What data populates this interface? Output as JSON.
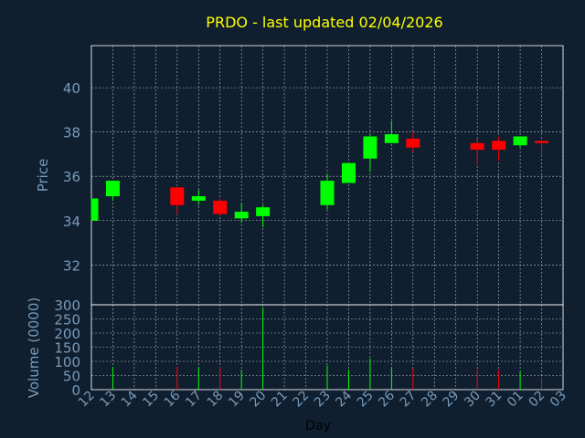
{
  "chart_data": {
    "title": "PRDO - last updated 02/04/2026",
    "xlabel": "Day",
    "ylabel": "Price",
    "volume_label": "Volume (0000)",
    "x_ticks": [
      "12",
      "13",
      "14",
      "15",
      "16",
      "17",
      "18",
      "19",
      "20",
      "21",
      "22",
      "23",
      "24",
      "25",
      "26",
      "27",
      "28",
      "29",
      "30",
      "31",
      "01",
      "02",
      "03"
    ],
    "price_ticks": [
      32,
      34,
      36,
      38,
      40
    ],
    "price_ylim": [
      30.2,
      41.9
    ],
    "volume_ticks": [
      0,
      50,
      100,
      150,
      200,
      250,
      300
    ],
    "volume_ylim": [
      0,
      300
    ],
    "grid": true,
    "colors": {
      "up": "#00ff00",
      "down": "#ff0000",
      "background": "#0f1f30",
      "grid": "#ffffff",
      "title": "#ffff00",
      "axis_text": "#7a9ab8"
    },
    "candles": [
      {
        "day": "12",
        "open": 34.0,
        "high": 35.0,
        "low": 34.0,
        "close": 35.0
      },
      {
        "day": "13",
        "open": 35.1,
        "high": 35.8,
        "low": 34.9,
        "close": 35.8
      },
      {
        "day": "16",
        "open": 35.5,
        "high": 35.5,
        "low": 34.3,
        "close": 34.7
      },
      {
        "day": "17",
        "open": 34.9,
        "high": 35.4,
        "low": 34.7,
        "close": 35.1
      },
      {
        "day": "18",
        "open": 34.9,
        "high": 35.0,
        "low": 34.2,
        "close": 34.3
      },
      {
        "day": "19",
        "open": 34.1,
        "high": 34.8,
        "low": 33.9,
        "close": 34.4
      },
      {
        "day": "20",
        "open": 34.2,
        "high": 34.7,
        "low": 33.7,
        "close": 34.6
      },
      {
        "day": "23",
        "open": 34.7,
        "high": 36.1,
        "low": 34.5,
        "close": 35.8
      },
      {
        "day": "24",
        "open": 35.7,
        "high": 36.6,
        "low": 35.7,
        "close": 36.6
      },
      {
        "day": "25",
        "open": 36.8,
        "high": 37.9,
        "low": 36.2,
        "close": 37.8
      },
      {
        "day": "26",
        "open": 37.5,
        "high": 38.5,
        "low": 37.5,
        "close": 37.9
      },
      {
        "day": "27",
        "open": 37.7,
        "high": 38.0,
        "low": 37.1,
        "close": 37.3
      },
      {
        "day": "30",
        "open": 37.5,
        "high": 37.7,
        "low": 36.5,
        "close": 37.2
      },
      {
        "day": "31",
        "open": 37.6,
        "high": 37.8,
        "low": 36.7,
        "close": 37.2
      },
      {
        "day": "01",
        "open": 37.4,
        "high": 37.8,
        "low": 37.3,
        "close": 37.8
      },
      {
        "day": "02",
        "open": 37.6,
        "high": 37.6,
        "low": 36.9,
        "close": 37.5
      }
    ],
    "volume": [
      {
        "day": "13",
        "value": 80,
        "dir": "up"
      },
      {
        "day": "16",
        "value": 80,
        "dir": "down"
      },
      {
        "day": "17",
        "value": 80,
        "dir": "up"
      },
      {
        "day": "18",
        "value": 80,
        "dir": "down"
      },
      {
        "day": "19",
        "value": 70,
        "dir": "up"
      },
      {
        "day": "20",
        "value": 290,
        "dir": "up"
      },
      {
        "day": "23",
        "value": 85,
        "dir": "up"
      },
      {
        "day": "24",
        "value": 70,
        "dir": "up"
      },
      {
        "day": "25",
        "value": 110,
        "dir": "up"
      },
      {
        "day": "26",
        "value": 80,
        "dir": "up"
      },
      {
        "day": "27",
        "value": 75,
        "dir": "down"
      },
      {
        "day": "30",
        "value": 75,
        "dir": "down"
      },
      {
        "day": "31",
        "value": 70,
        "dir": "down"
      },
      {
        "day": "01",
        "value": 65,
        "dir": "up"
      },
      {
        "day": "02",
        "value": 45,
        "dir": "down"
      }
    ]
  }
}
